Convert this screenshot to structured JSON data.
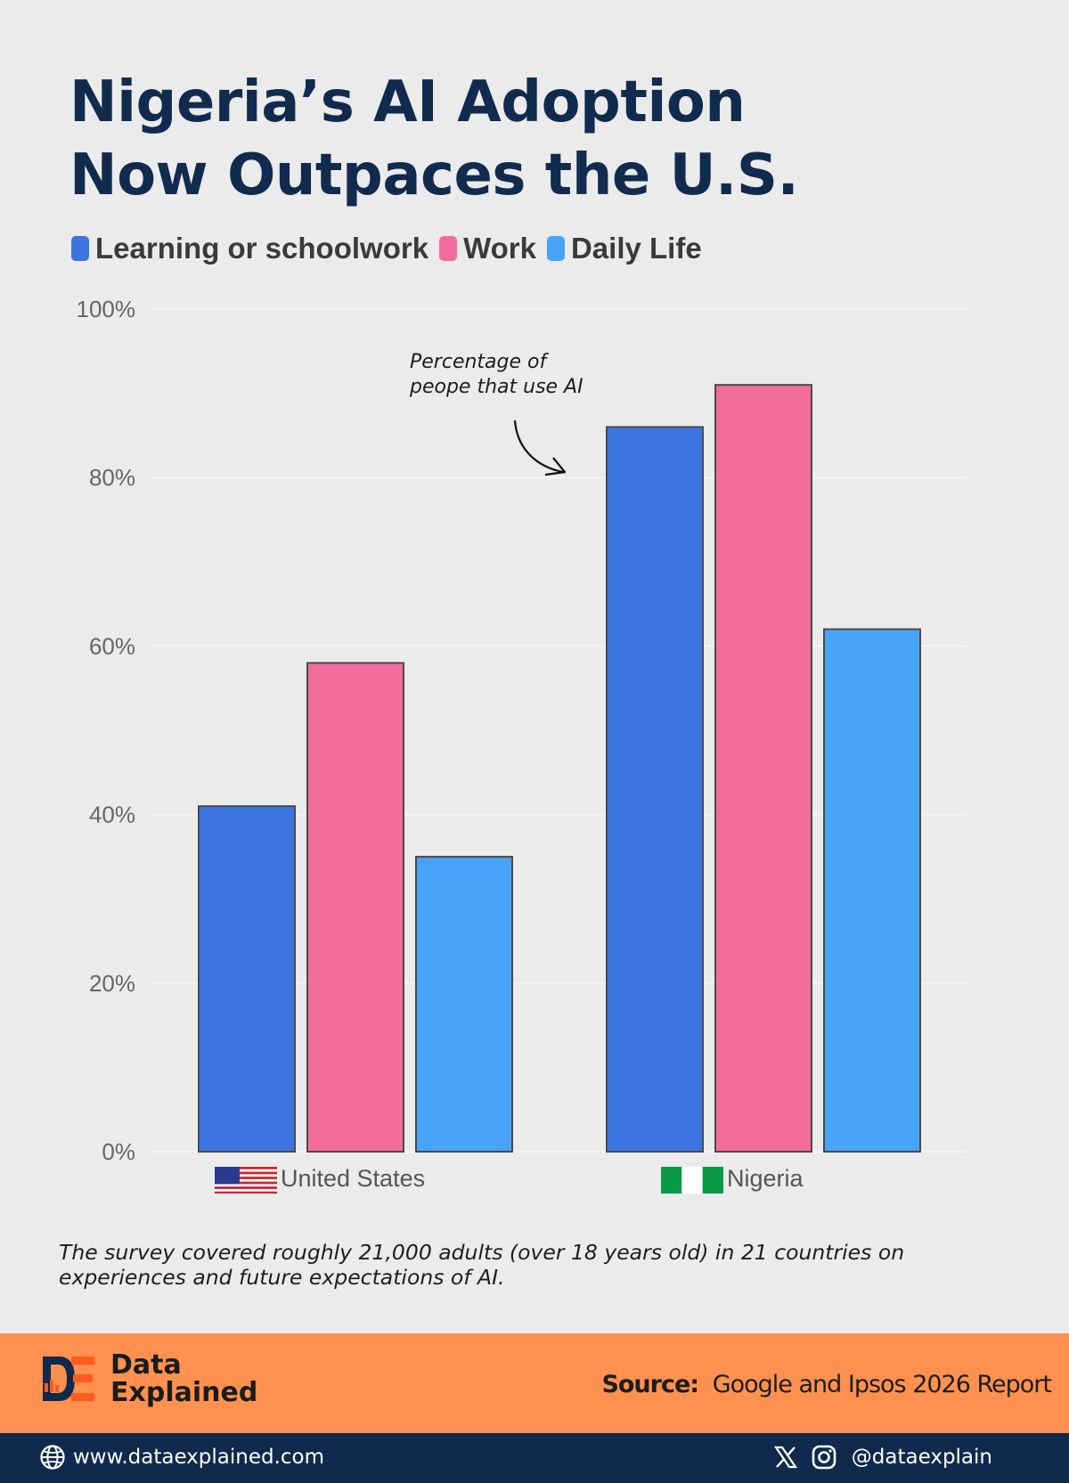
{
  "title": {
    "line1": "Nigeria’s AI Adoption",
    "line2": "Now Outpaces the U.S."
  },
  "annotation": {
    "line1": "Percentage of",
    "line2": "peope that use AI"
  },
  "chart_data": {
    "type": "bar",
    "categories": [
      "United States",
      "Nigeria"
    ],
    "series": [
      {
        "name": "Learning or schoolwork",
        "color": "#3c75e0",
        "values": [
          41,
          86
        ]
      },
      {
        "name": "Work",
        "color": "#f26c9c",
        "values": [
          58,
          91
        ]
      },
      {
        "name": "Daily Life",
        "color": "#48a4f9",
        "values": [
          35,
          62
        ]
      }
    ],
    "ylim": [
      0,
      100
    ],
    "yticks": [
      "0%",
      "20%",
      "40%",
      "60%",
      "80%",
      "100%"
    ],
    "ytick_values": [
      0,
      20,
      40,
      60,
      80,
      100
    ],
    "grid": true,
    "legend_position": "top-left",
    "category_icons": [
      "us-flag-icon",
      "nigeria-flag-icon"
    ]
  },
  "footnote": {
    "line1": "The survey covered roughly 21,000 adults (over 18 years old) in  21 countries on",
    "line2": "experiences and future expectations of AI."
  },
  "brand": {
    "line1": "Data",
    "line2": "Explained",
    "accent_color": "#ff5a1f",
    "dark_color": "#0f2a4c"
  },
  "source": {
    "label": "Source:",
    "text": "Google and Ipsos 2026 Report"
  },
  "footer": {
    "website": "www.dataexplained.com",
    "handle": "@dataexplain",
    "icons": [
      "globe-icon",
      "x-logo-icon",
      "instagram-icon"
    ]
  },
  "colors": {
    "background": "#ebebeb",
    "title": "#112b4f",
    "footer_band": "#fe9150",
    "bottom_bar": "#0f2a4c"
  }
}
